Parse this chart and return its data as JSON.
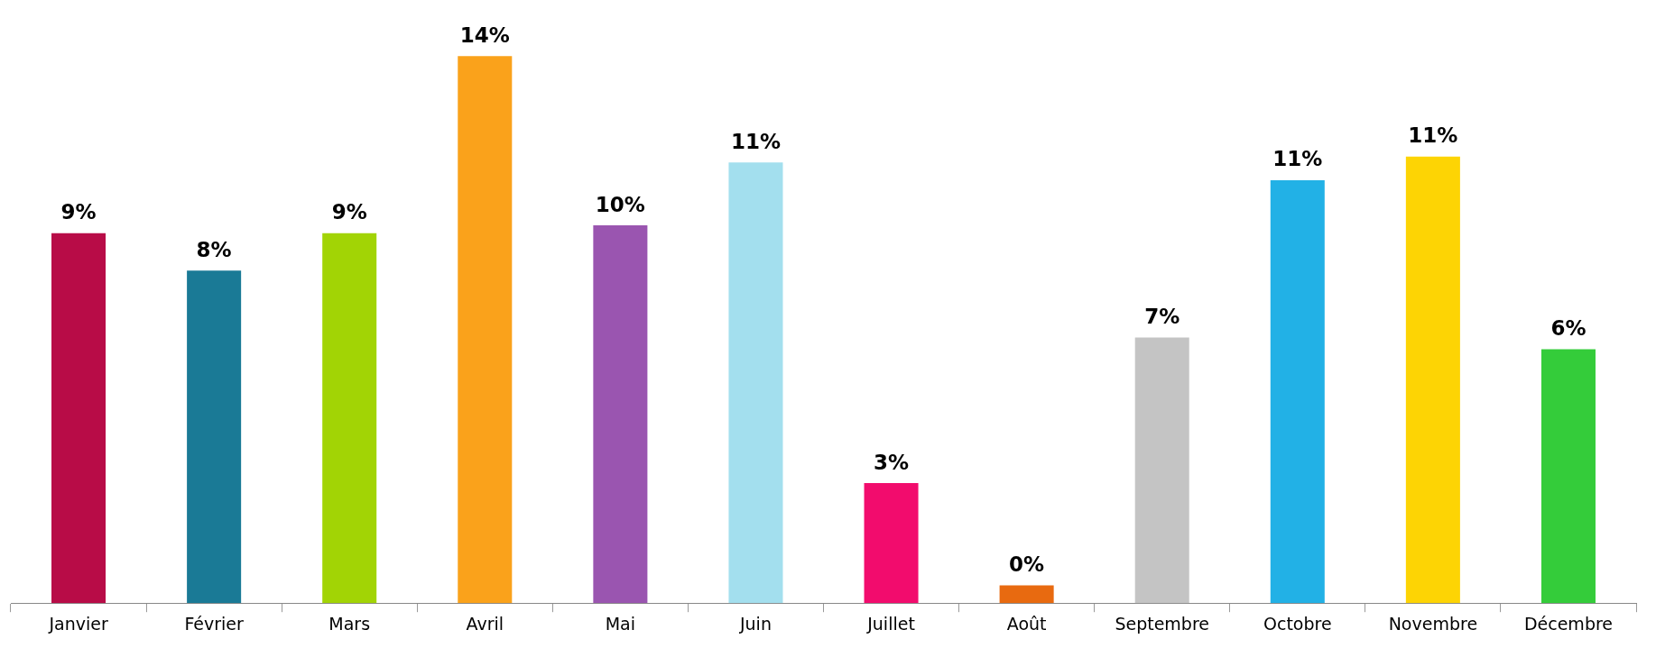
{
  "chart_data": {
    "type": "bar",
    "categories": [
      "Janvier",
      "Février",
      "Mars",
      "Avril",
      "Mai",
      "Juin",
      "Juillet",
      "Août",
      "Septembre",
      "Octobre",
      "Novembre",
      "Décembre"
    ],
    "values": [
      9.4,
      8.45,
      9.4,
      13.9,
      9.6,
      11.2,
      3.05,
      0.45,
      6.75,
      10.75,
      11.35,
      6.45
    ],
    "colors": [
      "#b80c47",
      "#1a7a96",
      "#a2d405",
      "#faa21b",
      "#9a55b0",
      "#a3dfee",
      "#f20c6d",
      "#e86a10",
      "#c4c4c4",
      "#22b1e6",
      "#fdd404",
      "#34cc3a"
    ],
    "value_labels": [
      "9%",
      "8%",
      "9%",
      "14%",
      "10%",
      "11%",
      "3%",
      "0%",
      "7%",
      "11%",
      "11%",
      "6%"
    ],
    "grid": false,
    "legend": false
  }
}
